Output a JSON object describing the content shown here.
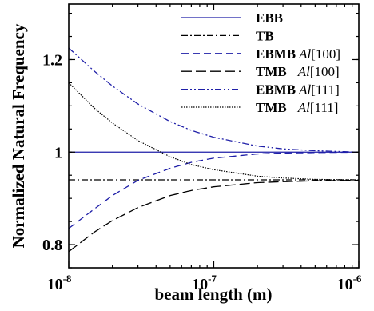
{
  "chart_data": {
    "type": "line",
    "xlabel": "beam length (m)",
    "ylabel": "Normalized Natural Frequency",
    "x_scale": "log",
    "xlim": [
      1e-08,
      1e-06
    ],
    "ylim": [
      0.75,
      1.32
    ],
    "x_ticks": [
      {
        "value": 1e-08,
        "base": "10",
        "exp": "-8"
      },
      {
        "value": 1e-07,
        "base": "10",
        "exp": "-7"
      },
      {
        "value": 1e-06,
        "base": "10",
        "exp": "-6"
      }
    ],
    "y_ticks": [
      {
        "value": 0.8,
        "label": "0.8"
      },
      {
        "value": 1.0,
        "label": "1"
      },
      {
        "value": 1.2,
        "label": "1.2"
      }
    ],
    "grid": false,
    "legend_position": "top-right",
    "x": [
      1e-08,
      1.5e-08,
      2e-08,
      3e-08,
      5e-08,
      7e-08,
      1e-07,
      2e-07,
      3e-07,
      5e-07,
      1e-06
    ],
    "series": [
      {
        "name": "EBB",
        "color": "#1f1fa8",
        "dash": "solid",
        "values": [
          1.0,
          1.0,
          1.0,
          1.0,
          1.0,
          1.0,
          1.0,
          1.0,
          1.0,
          1.0,
          1.0
        ]
      },
      {
        "name": "TB",
        "color": "#000000",
        "dash": "dashdot",
        "values": [
          0.94,
          0.94,
          0.94,
          0.94,
          0.94,
          0.94,
          0.94,
          0.94,
          0.94,
          0.94,
          0.94
        ]
      },
      {
        "name": "EBMB",
        "material": "Al[100]",
        "color": "#1f1fa8",
        "dash": "dashed",
        "values": [
          0.835,
          0.877,
          0.906,
          0.939,
          0.965,
          0.978,
          0.987,
          0.996,
          0.998,
          0.999,
          1.0
        ]
      },
      {
        "name": "TMB",
        "material": "Al[100]",
        "color": "#000000",
        "dash": "longdash",
        "values": [
          0.785,
          0.827,
          0.852,
          0.88,
          0.906,
          0.917,
          0.925,
          0.934,
          0.936,
          0.938,
          0.939
        ]
      },
      {
        "name": "EBMB",
        "material": "Al[111]",
        "color": "#1f1fa8",
        "dash": "dashdotdot",
        "values": [
          1.225,
          1.175,
          1.143,
          1.104,
          1.066,
          1.047,
          1.032,
          1.013,
          1.007,
          1.003,
          1.0
        ]
      },
      {
        "name": "TMB",
        "material": "Al[111]",
        "color": "#000000",
        "dash": "dotted",
        "values": [
          1.15,
          1.095,
          1.063,
          1.025,
          0.99,
          0.973,
          0.962,
          0.948,
          0.944,
          0.941,
          0.94
        ]
      }
    ]
  }
}
